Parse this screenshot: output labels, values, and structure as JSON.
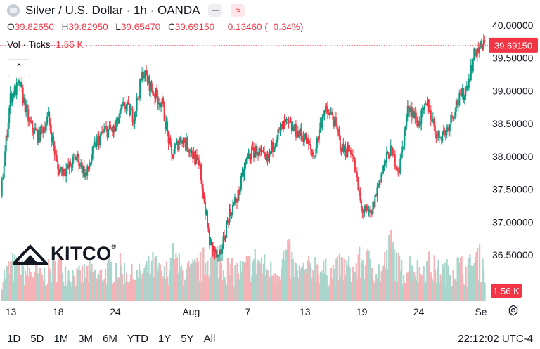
{
  "header": {
    "title": "Silver / U.S. Dollar · 1h · OANDA",
    "ohlc": [
      {
        "key": "O",
        "value": "39.82650"
      },
      {
        "key": "H",
        "value": "39.82950"
      },
      {
        "key": "L",
        "value": "39.65470"
      },
      {
        "key": "C",
        "value": "39.69150"
      }
    ],
    "change": "−0.13460 (−0.34%)",
    "vol_label": "Vol · Ticks",
    "vol_value": "1.56 K"
  },
  "logo": {
    "text": "KITCO",
    "mark": "®"
  },
  "range_buttons": [
    "1D",
    "5D",
    "1M",
    "3M",
    "6M",
    "YTD",
    "1Y",
    "5Y",
    "All"
  ],
  "clock": "22:12:02 UTC-4",
  "colors": {
    "up": "#089981",
    "down": "#f23645",
    "price_line": "#f23645",
    "vol_up": "#a8d5cc",
    "vol_down": "#f5b3b8"
  },
  "chart_data": {
    "type": "line",
    "title": "Silver / U.S. Dollar · 1h · OANDA",
    "xlabel": "",
    "ylabel": "",
    "ylim": [
      36.15,
      40.1
    ],
    "y_ticks": [
      "40.00000",
      "39.50000",
      "39.00000",
      "38.50000",
      "38.00000",
      "37.50000",
      "37.00000",
      "36.50000"
    ],
    "y_tick_values": [
      40.0,
      39.5,
      39.0,
      38.5,
      38.0,
      37.5,
      37.0,
      36.5
    ],
    "x_ticks": [
      "13",
      "18",
      "24",
      "Aug",
      "7",
      "13",
      "19",
      "24",
      "Se"
    ],
    "x_tick_positions": [
      1,
      6,
      12,
      20,
      26,
      32,
      38,
      44,
      51
    ],
    "last_price": "39.69150",
    "last_volume": "1.56 K",
    "grid": false,
    "series": [
      {
        "values": [
          37.4,
          38.9,
          39.1,
          38.5,
          38.3,
          38.6,
          37.8,
          37.8,
          38.0,
          37.7,
          38.2,
          38.4,
          38.4,
          38.8,
          38.6,
          39.3,
          39.0,
          38.8,
          38.0,
          38.3,
          38.1,
          37.8,
          36.7,
          36.4,
          37.1,
          37.4,
          38.0,
          38.1,
          37.9,
          38.3,
          38.5,
          38.4,
          38.3,
          38.0,
          38.7,
          38.6,
          38.1,
          38.1,
          37.2,
          37.1,
          37.7,
          38.1,
          37.8,
          38.8,
          38.5,
          38.8,
          38.3,
          38.4,
          38.8,
          39.0,
          39.6,
          39.7
        ],
        "volume_scale": [
          0.4,
          0.6,
          0.5,
          0.5,
          0.4,
          0.5,
          0.6,
          0.5,
          0.4,
          0.5,
          0.4,
          0.5,
          0.6,
          0.5,
          0.4,
          0.5,
          0.6,
          0.4,
          0.7,
          0.5,
          0.5,
          0.6,
          0.8,
          0.7,
          0.5,
          0.5,
          0.6,
          0.7,
          0.5,
          0.5,
          0.8,
          0.5,
          0.5,
          0.6,
          0.5,
          0.5,
          0.6,
          0.5,
          0.7,
          0.6,
          0.5,
          0.9,
          0.5,
          0.6,
          0.5,
          0.6,
          0.5,
          0.5,
          0.6,
          0.5,
          0.7,
          0.6
        ]
      }
    ]
  }
}
